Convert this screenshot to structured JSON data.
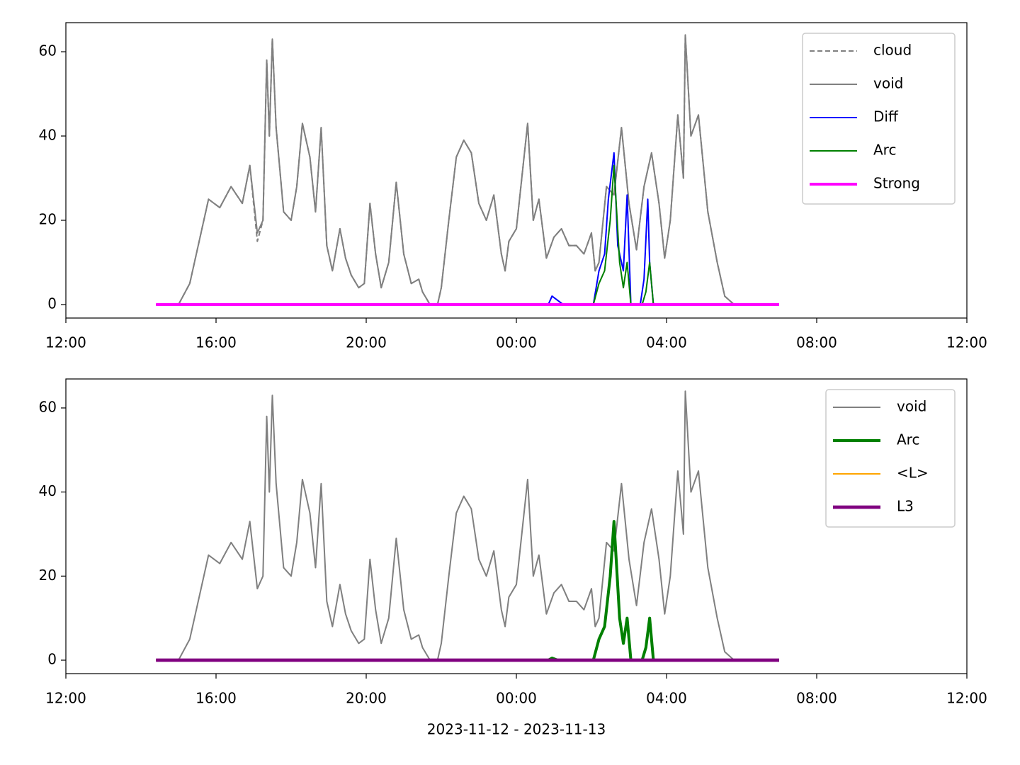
{
  "chart_data": [
    {
      "type": "line",
      "xlim": [
        12,
        36
      ],
      "ylim": [
        -3.2,
        66.9
      ],
      "xticks": [
        {
          "value": 12,
          "label": "12:00"
        },
        {
          "value": 16,
          "label": "16:00"
        },
        {
          "value": 20,
          "label": "20:00"
        },
        {
          "value": 24,
          "label": "00:00"
        },
        {
          "value": 28,
          "label": "04:00"
        },
        {
          "value": 32,
          "label": "08:00"
        },
        {
          "value": 36,
          "label": "12:00"
        }
      ],
      "yticks": [
        0,
        20,
        40,
        60
      ],
      "legend": "upper right",
      "series": [
        {
          "name": "cloud",
          "color": "#808080",
          "linestyle": "dashed",
          "linewidth": 1.5,
          "x": [
            14.4,
            15.0,
            15.3,
            15.6,
            15.8,
            16.1,
            16.4,
            16.7,
            16.9,
            17.1,
            17.25,
            17.35,
            17.42,
            17.5,
            17.6,
            17.8,
            18.0,
            18.15,
            18.3,
            18.5,
            18.65,
            18.8,
            18.95,
            19.1,
            19.3,
            19.45,
            19.6,
            19.8,
            19.95,
            20.1,
            20.25,
            20.4,
            20.6,
            20.8,
            21.0,
            21.2,
            21.4,
            21.5,
            21.7,
            21.9,
            22.0,
            22.2,
            22.4,
            22.6,
            22.8,
            23.0,
            23.2,
            23.4,
            23.6,
            23.7,
            23.8,
            24.0,
            24.3,
            24.45,
            24.6,
            24.8,
            25.0,
            25.2,
            25.4,
            25.6,
            25.8,
            26.0,
            26.1,
            26.2,
            26.4,
            26.6,
            26.8,
            27.0,
            27.2,
            27.4,
            27.6,
            27.8,
            27.95,
            28.1,
            28.3,
            28.45,
            28.5,
            28.65,
            28.85,
            29.1,
            29.35,
            29.55,
            29.8,
            31.0
          ],
          "values": [
            0,
            0,
            5,
            17,
            25,
            23,
            28,
            24,
            33,
            15,
            20,
            58,
            40,
            63,
            42,
            22,
            20,
            28,
            43,
            35,
            22,
            42,
            14,
            8,
            18,
            11,
            7,
            4,
            5,
            24,
            12,
            4,
            10,
            29,
            12,
            5,
            6,
            3,
            0,
            0,
            4,
            20,
            35,
            39,
            36,
            24,
            20,
            26,
            12,
            8,
            15,
            18,
            43,
            20,
            25,
            11,
            16,
            18,
            14,
            14,
            12,
            17,
            8,
            10,
            28,
            26,
            42,
            24,
            13,
            28,
            36,
            24,
            11,
            20,
            45,
            30,
            64,
            40,
            45,
            22,
            10,
            2,
            0,
            0
          ]
        },
        {
          "name": "void",
          "color": "#808080",
          "linestyle": "solid",
          "linewidth": 1.5,
          "x": [
            14.4,
            15.0,
            15.3,
            15.6,
            15.8,
            16.1,
            16.4,
            16.7,
            16.9,
            17.1,
            17.25,
            17.35,
            17.42,
            17.5,
            17.6,
            17.8,
            18.0,
            18.15,
            18.3,
            18.5,
            18.65,
            18.8,
            18.95,
            19.1,
            19.3,
            19.45,
            19.6,
            19.8,
            19.95,
            20.1,
            20.25,
            20.4,
            20.6,
            20.8,
            21.0,
            21.2,
            21.4,
            21.5,
            21.7,
            21.9,
            22.0,
            22.2,
            22.4,
            22.6,
            22.8,
            23.0,
            23.2,
            23.4,
            23.6,
            23.7,
            23.8,
            24.0,
            24.3,
            24.45,
            24.6,
            24.8,
            25.0,
            25.2,
            25.4,
            25.6,
            25.8,
            26.0,
            26.1,
            26.2,
            26.4,
            26.6,
            26.8,
            27.0,
            27.2,
            27.4,
            27.6,
            27.8,
            27.95,
            28.1,
            28.3,
            28.45,
            28.5,
            28.65,
            28.85,
            29.1,
            29.35,
            29.55,
            29.8,
            31.0
          ],
          "values": [
            0,
            0,
            5,
            17,
            25,
            23,
            28,
            24,
            33,
            17,
            20,
            58,
            40,
            63,
            42,
            22,
            20,
            28,
            43,
            35,
            22,
            42,
            14,
            8,
            18,
            11,
            7,
            4,
            5,
            24,
            12,
            4,
            10,
            29,
            12,
            5,
            6,
            3,
            0,
            0,
            4,
            20,
            35,
            39,
            36,
            24,
            20,
            26,
            12,
            8,
            15,
            18,
            43,
            20,
            25,
            11,
            16,
            18,
            14,
            14,
            12,
            17,
            8,
            10,
            28,
            26,
            42,
            24,
            13,
            28,
            36,
            24,
            11,
            20,
            45,
            30,
            64,
            40,
            45,
            22,
            10,
            2,
            0,
            0
          ]
        },
        {
          "name": "Diff",
          "color": "#0000ff",
          "linestyle": "solid",
          "linewidth": 1.5,
          "x": [
            24.85,
            24.95,
            25.1,
            25.25,
            26.05,
            26.2,
            26.35,
            26.45,
            26.6,
            26.7,
            26.85,
            26.95,
            27.05,
            27.3,
            27.4,
            27.5,
            27.55,
            27.65
          ],
          "values": [
            0,
            2,
            1,
            0,
            0,
            8,
            12,
            25,
            36,
            14,
            8,
            26,
            0,
            0,
            6,
            25,
            10,
            0
          ]
        },
        {
          "name": "Arc",
          "color": "#008000",
          "linestyle": "solid",
          "linewidth": 1.5,
          "x": [
            26.05,
            26.2,
            26.35,
            26.5,
            26.6,
            26.75,
            26.85,
            26.95,
            27.05,
            27.35,
            27.45,
            27.55,
            27.65
          ],
          "values": [
            0,
            5,
            8,
            20,
            33,
            10,
            4,
            10,
            0,
            0,
            3,
            10,
            0
          ]
        },
        {
          "name": "Strong",
          "color": "#ff00ff",
          "linestyle": "solid",
          "linewidth": 3,
          "x": [
            14.4,
            31.0
          ],
          "values": [
            0,
            0
          ]
        }
      ]
    },
    {
      "type": "line",
      "xlabel": "2023-11-12 - 2023-11-13",
      "xlim": [
        12,
        36
      ],
      "ylim": [
        -3.2,
        66.9
      ],
      "xticks": [
        {
          "value": 12,
          "label": "12:00"
        },
        {
          "value": 16,
          "label": "16:00"
        },
        {
          "value": 20,
          "label": "20:00"
        },
        {
          "value": 24,
          "label": "00:00"
        },
        {
          "value": 28,
          "label": "04:00"
        },
        {
          "value": 32,
          "label": "08:00"
        },
        {
          "value": 36,
          "label": "12:00"
        }
      ],
      "yticks": [
        0,
        20,
        40,
        60
      ],
      "legend": "upper right",
      "series": [
        {
          "name": "void",
          "color": "#808080",
          "linestyle": "solid",
          "linewidth": 1.5,
          "x": [
            14.4,
            15.0,
            15.3,
            15.6,
            15.8,
            16.1,
            16.4,
            16.7,
            16.9,
            17.1,
            17.25,
            17.35,
            17.42,
            17.5,
            17.6,
            17.8,
            18.0,
            18.15,
            18.3,
            18.5,
            18.65,
            18.8,
            18.95,
            19.1,
            19.3,
            19.45,
            19.6,
            19.8,
            19.95,
            20.1,
            20.25,
            20.4,
            20.6,
            20.8,
            21.0,
            21.2,
            21.4,
            21.5,
            21.7,
            21.9,
            22.0,
            22.2,
            22.4,
            22.6,
            22.8,
            23.0,
            23.2,
            23.4,
            23.6,
            23.7,
            23.8,
            24.0,
            24.3,
            24.45,
            24.6,
            24.8,
            25.0,
            25.2,
            25.4,
            25.6,
            25.8,
            26.0,
            26.1,
            26.2,
            26.4,
            26.6,
            26.8,
            27.0,
            27.2,
            27.4,
            27.6,
            27.8,
            27.95,
            28.1,
            28.3,
            28.45,
            28.5,
            28.65,
            28.85,
            29.1,
            29.35,
            29.55,
            29.8,
            31.0
          ],
          "values": [
            0,
            0,
            5,
            17,
            25,
            23,
            28,
            24,
            33,
            17,
            20,
            58,
            40,
            63,
            42,
            22,
            20,
            28,
            43,
            35,
            22,
            42,
            14,
            8,
            18,
            11,
            7,
            4,
            5,
            24,
            12,
            4,
            10,
            29,
            12,
            5,
            6,
            3,
            0,
            0,
            4,
            20,
            35,
            39,
            36,
            24,
            20,
            26,
            12,
            8,
            15,
            18,
            43,
            20,
            25,
            11,
            16,
            18,
            14,
            14,
            12,
            17,
            8,
            10,
            28,
            26,
            42,
            24,
            13,
            28,
            36,
            24,
            11,
            20,
            45,
            30,
            64,
            40,
            45,
            22,
            10,
            2,
            0,
            0
          ]
        },
        {
          "name": "Arc",
          "color": "#008000",
          "linestyle": "solid",
          "linewidth": 3,
          "x": [
            24.85,
            24.95,
            25.1,
            26.05,
            26.2,
            26.35,
            26.5,
            26.6,
            26.75,
            26.85,
            26.95,
            27.05,
            27.35,
            27.45,
            27.55,
            27.65
          ],
          "values": [
            0,
            0.5,
            0,
            0,
            5,
            8,
            20,
            33,
            10,
            4,
            10,
            0,
            0,
            3,
            10,
            0
          ]
        },
        {
          "name": "<L>",
          "color": "#ffa500",
          "linestyle": "solid",
          "linewidth": 1.5,
          "x": [
            14.4,
            31.0
          ],
          "values": [
            0,
            0
          ]
        },
        {
          "name": "L3",
          "color": "#800080",
          "linestyle": "solid",
          "linewidth": 3.5,
          "x": [
            14.4,
            31.0
          ],
          "values": [
            0,
            0
          ]
        }
      ]
    }
  ]
}
